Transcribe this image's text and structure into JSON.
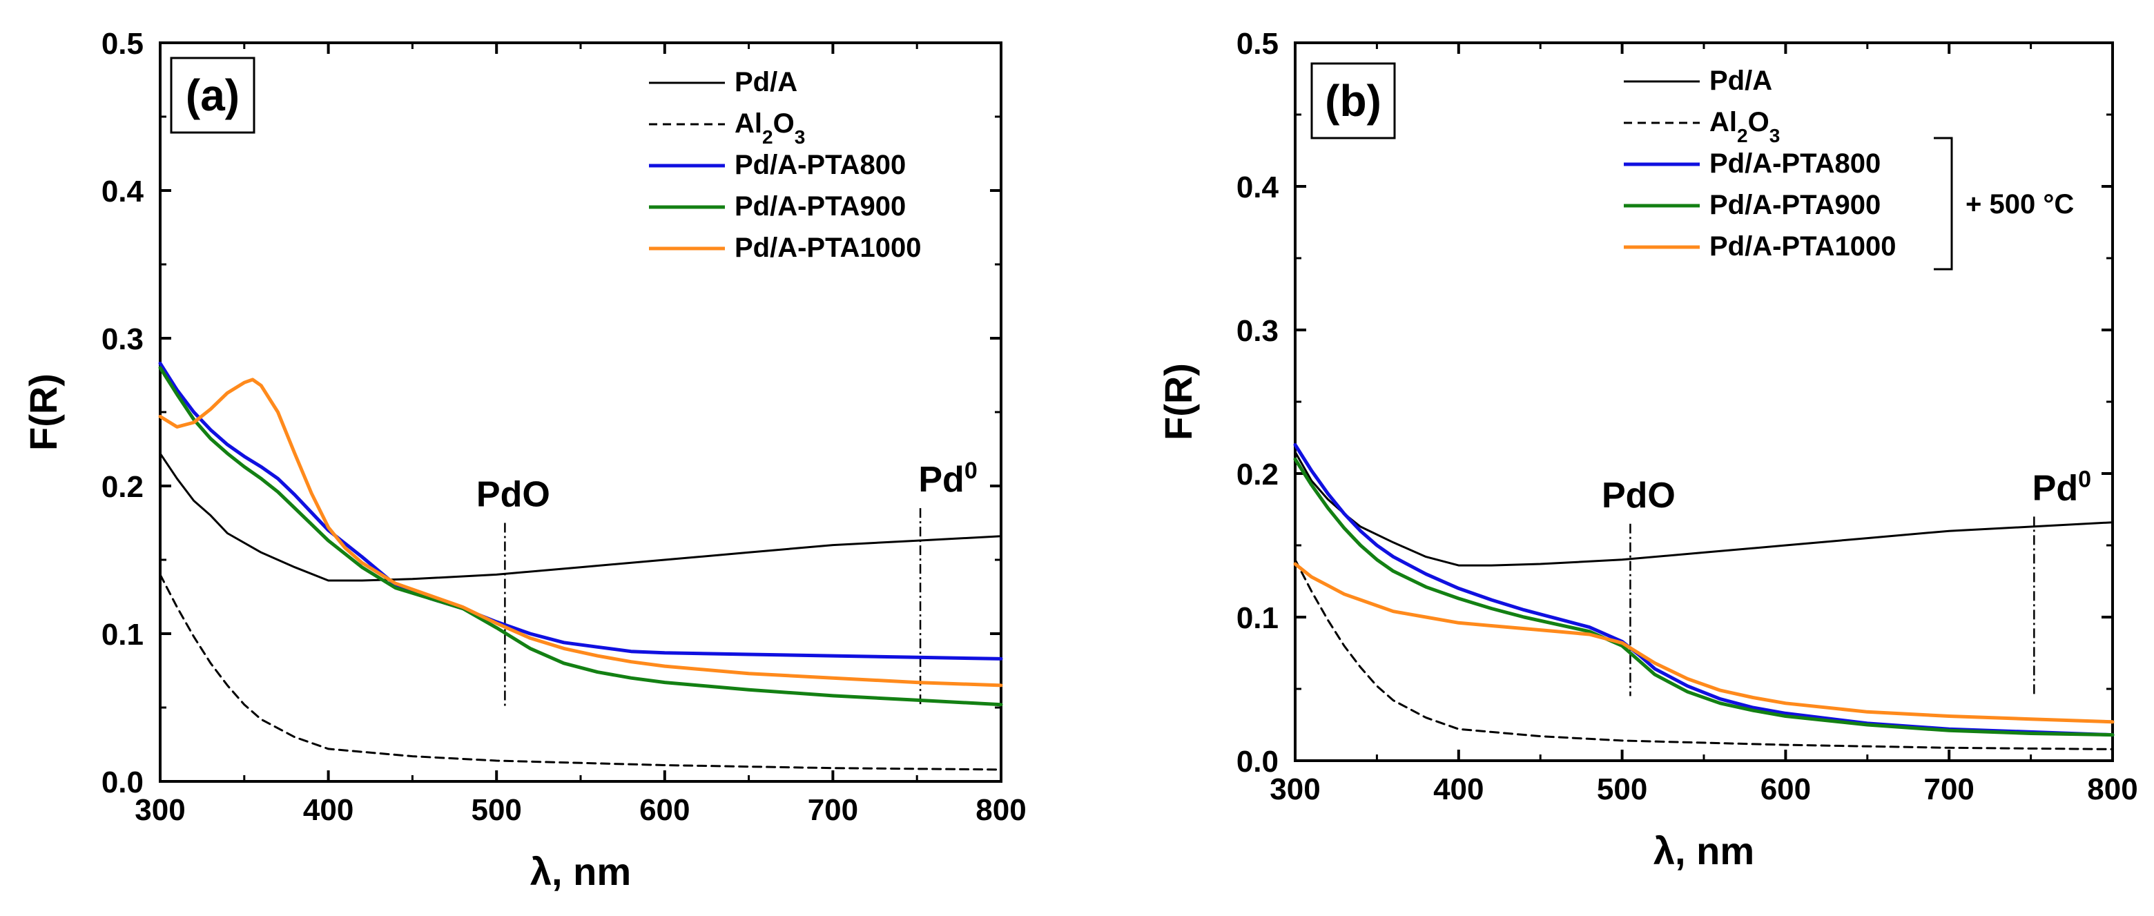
{
  "chart_data": [
    {
      "type": "line",
      "panel_label": "(a)",
      "xlabel": "λ, nm",
      "ylabel": "F(R)",
      "xlim": [
        300,
        800
      ],
      "ylim": [
        0,
        0.5
      ],
      "xticks": [
        "300",
        "400",
        "500",
        "600",
        "700",
        "800"
      ],
      "yticks": [
        "0.0",
        "0.1",
        "0.2",
        "0.3",
        "0.4",
        "0.5"
      ],
      "annotations": [
        {
          "text": "PdO",
          "sup": "",
          "x": 505,
          "line_y": [
            0.05,
            0.175
          ]
        },
        {
          "text": "Pd",
          "sup": "0",
          "x": 752,
          "line_y": [
            0.05,
            0.185
          ]
        }
      ],
      "legend_position": "top-right",
      "series": [
        {
          "name": "Pd/A",
          "sub": "",
          "color": "#000000",
          "dash": "solid",
          "x": [
            300,
            310,
            320,
            330,
            340,
            360,
            380,
            400,
            420,
            450,
            500,
            550,
            600,
            650,
            700,
            750,
            800
          ],
          "y": [
            0.222,
            0.205,
            0.19,
            0.18,
            0.168,
            0.155,
            0.145,
            0.136,
            0.136,
            0.137,
            0.14,
            0.145,
            0.15,
            0.155,
            0.16,
            0.163,
            0.166
          ]
        },
        {
          "name": "Al",
          "sub": "2",
          "name2": "O",
          "sub2": "3",
          "color": "#000000",
          "dash": "dashed",
          "x": [
            300,
            310,
            320,
            330,
            340,
            350,
            360,
            380,
            400,
            450,
            500,
            600,
            700,
            800
          ],
          "y": [
            0.14,
            0.118,
            0.098,
            0.08,
            0.065,
            0.052,
            0.042,
            0.03,
            0.022,
            0.017,
            0.014,
            0.011,
            0.009,
            0.008
          ]
        },
        {
          "name": "Pd/A-PTA800",
          "sub": "",
          "color": "#1010e0",
          "dash": "solid",
          "x": [
            300,
            310,
            320,
            330,
            340,
            350,
            360,
            370,
            380,
            390,
            400,
            420,
            440,
            460,
            480,
            500,
            520,
            540,
            560,
            580,
            600,
            650,
            700,
            750,
            800
          ],
          "y": [
            0.283,
            0.265,
            0.25,
            0.238,
            0.228,
            0.22,
            0.213,
            0.205,
            0.194,
            0.182,
            0.17,
            0.152,
            0.133,
            0.124,
            0.117,
            0.108,
            0.1,
            0.094,
            0.091,
            0.088,
            0.087,
            0.086,
            0.085,
            0.084,
            0.083
          ]
        },
        {
          "name": "Pd/A-PTA900",
          "sub": "",
          "color": "#138013",
          "dash": "solid",
          "x": [
            300,
            310,
            320,
            330,
            340,
            350,
            360,
            370,
            380,
            390,
            400,
            420,
            440,
            460,
            480,
            500,
            520,
            540,
            560,
            580,
            600,
            650,
            700,
            750,
            800
          ],
          "y": [
            0.28,
            0.262,
            0.245,
            0.232,
            0.222,
            0.213,
            0.205,
            0.196,
            0.185,
            0.174,
            0.163,
            0.145,
            0.131,
            0.124,
            0.117,
            0.104,
            0.09,
            0.08,
            0.074,
            0.07,
            0.067,
            0.062,
            0.058,
            0.055,
            0.052
          ]
        },
        {
          "name": "Pd/A-PTA1000",
          "sub": "",
          "color": "#ff8a1c",
          "dash": "solid",
          "x": [
            300,
            310,
            320,
            330,
            340,
            350,
            355,
            360,
            370,
            380,
            390,
            400,
            410,
            420,
            440,
            460,
            480,
            500,
            520,
            540,
            560,
            580,
            600,
            650,
            700,
            750,
            800
          ],
          "y": [
            0.247,
            0.24,
            0.243,
            0.252,
            0.263,
            0.27,
            0.272,
            0.268,
            0.25,
            0.222,
            0.195,
            0.172,
            0.158,
            0.148,
            0.134,
            0.126,
            0.118,
            0.107,
            0.097,
            0.09,
            0.085,
            0.081,
            0.078,
            0.073,
            0.07,
            0.067,
            0.065
          ]
        }
      ]
    },
    {
      "type": "line",
      "panel_label": "(b)",
      "xlabel": "λ, nm",
      "ylabel": "F(R)",
      "xlim": [
        300,
        800
      ],
      "ylim": [
        0,
        0.5
      ],
      "xticks": [
        "300",
        "400",
        "500",
        "600",
        "700",
        "800"
      ],
      "yticks": [
        "0.0",
        "0.1",
        "0.2",
        "0.3",
        "0.4",
        "0.5"
      ],
      "bracket_label": "+ 500 °C",
      "annotations": [
        {
          "text": "PdO",
          "sup": "",
          "x": 505,
          "line_y": [
            0.045,
            0.165
          ]
        },
        {
          "text": "Pd",
          "sup": "0",
          "x": 752,
          "line_y": [
            0.045,
            0.17
          ]
        }
      ],
      "legend_position": "top-right",
      "series": [
        {
          "name": "Pd/A",
          "sub": "",
          "color": "#000000",
          "dash": "solid",
          "x": [
            300,
            310,
            320,
            330,
            340,
            360,
            380,
            400,
            420,
            450,
            500,
            550,
            600,
            650,
            700,
            750,
            800
          ],
          "y": [
            0.215,
            0.195,
            0.182,
            0.172,
            0.163,
            0.152,
            0.142,
            0.136,
            0.136,
            0.137,
            0.14,
            0.145,
            0.15,
            0.155,
            0.16,
            0.163,
            0.166
          ]
        },
        {
          "name": "Al",
          "sub": "2",
          "name2": "O",
          "sub2": "3",
          "color": "#000000",
          "dash": "dashed",
          "x": [
            300,
            310,
            320,
            330,
            340,
            350,
            360,
            380,
            400,
            450,
            500,
            600,
            700,
            800
          ],
          "y": [
            0.14,
            0.118,
            0.098,
            0.08,
            0.065,
            0.052,
            0.042,
            0.03,
            0.022,
            0.017,
            0.014,
            0.011,
            0.009,
            0.008
          ]
        },
        {
          "name": "Pd/A-PTA800",
          "sub": "",
          "color": "#1010e0",
          "dash": "solid",
          "x": [
            300,
            310,
            320,
            330,
            340,
            350,
            360,
            380,
            400,
            420,
            440,
            460,
            480,
            500,
            510,
            520,
            540,
            560,
            580,
            600,
            650,
            700,
            750,
            800
          ],
          "y": [
            0.22,
            0.202,
            0.186,
            0.172,
            0.16,
            0.15,
            0.142,
            0.13,
            0.12,
            0.112,
            0.105,
            0.099,
            0.093,
            0.083,
            0.074,
            0.064,
            0.052,
            0.043,
            0.037,
            0.033,
            0.026,
            0.022,
            0.02,
            0.018
          ]
        },
        {
          "name": "Pd/A-PTA900",
          "sub": "",
          "color": "#138013",
          "dash": "solid",
          "x": [
            300,
            310,
            320,
            330,
            340,
            350,
            360,
            380,
            400,
            420,
            440,
            460,
            480,
            500,
            510,
            520,
            540,
            560,
            580,
            600,
            650,
            700,
            750,
            800
          ],
          "y": [
            0.21,
            0.192,
            0.176,
            0.162,
            0.15,
            0.14,
            0.132,
            0.121,
            0.113,
            0.106,
            0.1,
            0.095,
            0.09,
            0.08,
            0.07,
            0.06,
            0.048,
            0.04,
            0.035,
            0.031,
            0.025,
            0.021,
            0.019,
            0.018
          ]
        },
        {
          "name": "Pd/A-PTA1000",
          "sub": "",
          "color": "#ff8a1c",
          "dash": "solid",
          "x": [
            300,
            310,
            320,
            330,
            340,
            350,
            360,
            380,
            400,
            420,
            440,
            460,
            480,
            500,
            510,
            520,
            540,
            560,
            580,
            600,
            650,
            700,
            750,
            800
          ],
          "y": [
            0.137,
            0.128,
            0.122,
            0.116,
            0.112,
            0.108,
            0.104,
            0.1,
            0.096,
            0.094,
            0.092,
            0.09,
            0.088,
            0.082,
            0.075,
            0.068,
            0.057,
            0.049,
            0.044,
            0.04,
            0.034,
            0.031,
            0.029,
            0.027
          ]
        }
      ]
    }
  ]
}
